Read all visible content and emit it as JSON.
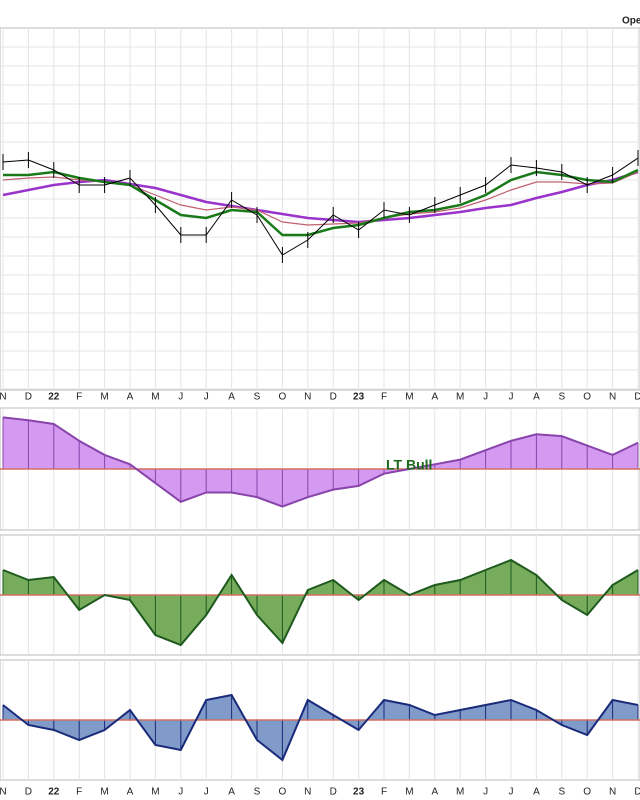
{
  "chart_data": [
    {
      "type": "line",
      "title": "Ope",
      "categories": [
        "N",
        "D",
        "22",
        "F",
        "M",
        "A",
        "M",
        "J",
        "J",
        "A",
        "S",
        "O",
        "N",
        "D",
        "23",
        "F",
        "M",
        "A",
        "M",
        "J",
        "J",
        "A",
        "S",
        "O",
        "N",
        "D"
      ],
      "ylim": [
        0,
        362
      ],
      "grid": true,
      "series": [
        {
          "color": "#9933cc",
          "values": [
            195,
            200,
            205,
            208,
            210,
            206,
            202,
            195,
            188,
            184,
            180,
            176,
            172,
            170,
            168,
            170,
            172,
            175,
            178,
            182,
            185,
            192,
            198,
            205,
            210,
            218
          ]
        },
        {
          "color": "#c06070",
          "values": [
            210,
            212,
            213,
            210,
            208,
            205,
            195,
            185,
            180,
            183,
            180,
            168,
            165,
            166,
            167,
            172,
            176,
            178,
            182,
            190,
            200,
            208,
            208,
            206,
            207,
            218
          ]
        },
        {
          "color": "#1a7a1a",
          "values": [
            215,
            215,
            218,
            212,
            208,
            205,
            190,
            175,
            172,
            180,
            178,
            155,
            155,
            162,
            165,
            172,
            178,
            180,
            185,
            195,
            210,
            218,
            215,
            210,
            208,
            220
          ]
        },
        {
          "color": "#000000",
          "values": [
            228,
            230,
            220,
            205,
            205,
            212,
            185,
            155,
            155,
            190,
            175,
            135,
            150,
            175,
            160,
            180,
            175,
            185,
            195,
            205,
            225,
            222,
            218,
            205,
            215,
            232
          ]
        }
      ]
    },
    {
      "type": "area",
      "annotation": "LT Bull",
      "fill": "#cc88ee",
      "color": "#8844aa",
      "ylim": [
        -65,
        65
      ],
      "values": [
        55,
        52,
        48,
        30,
        15,
        5,
        -15,
        -35,
        -25,
        -25,
        -30,
        -40,
        -30,
        -22,
        -18,
        -5,
        0,
        5,
        10,
        20,
        30,
        37,
        35,
        25,
        15,
        28
      ]
    },
    {
      "type": "area",
      "fill": "#5e9e40",
      "color": "#1e5a1e",
      "ylim": [
        -60,
        60
      ],
      "values": [
        25,
        15,
        18,
        -15,
        0,
        -5,
        -40,
        -50,
        -20,
        20,
        -20,
        -48,
        5,
        15,
        -5,
        15,
        0,
        10,
        15,
        25,
        35,
        20,
        -5,
        -20,
        10,
        25
      ]
    },
    {
      "type": "area",
      "fill": "#6a8ac0",
      "color": "#1a2a7a",
      "ylim": [
        -60,
        60
      ],
      "values": [
        15,
        -5,
        -10,
        -20,
        -10,
        10,
        -25,
        -30,
        20,
        25,
        -20,
        -40,
        20,
        5,
        -10,
        20,
        15,
        5,
        10,
        15,
        20,
        10,
        -5,
        -15,
        20,
        15
      ]
    }
  ]
}
